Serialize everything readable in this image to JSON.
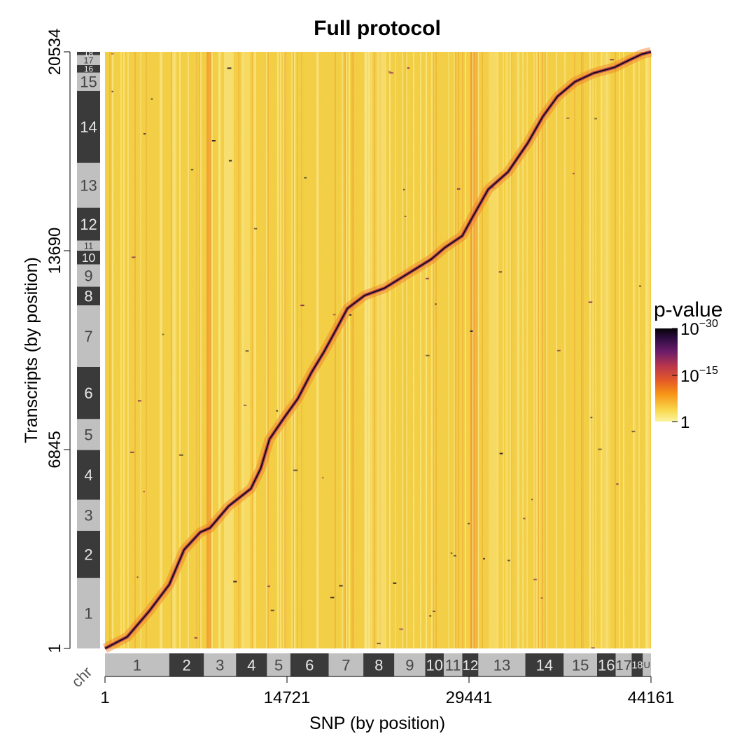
{
  "chart_data": {
    "type": "heatmap",
    "title": "Full protocol",
    "xlabel": "SNP (by position)",
    "ylabel": "Transcripts (by position)",
    "x_ticks": [
      "1",
      "14721",
      "29441",
      "44161"
    ],
    "x_tick_values": [
      1,
      14721,
      29441,
      44161
    ],
    "xlim": [
      1,
      44161
    ],
    "y_ticks": [
      "1",
      "6845",
      "13690",
      "20534"
    ],
    "y_tick_values": [
      1,
      6845,
      13690,
      20534
    ],
    "ylim": [
      1,
      20534
    ],
    "chr_axis_label": "chr",
    "x_chromosomes": [
      {
        "label": "1",
        "start": 1,
        "end": 5200,
        "shade": "light"
      },
      {
        "label": "2",
        "start": 5200,
        "end": 8000,
        "shade": "dark"
      },
      {
        "label": "3",
        "start": 8000,
        "end": 10600,
        "shade": "light"
      },
      {
        "label": "4",
        "start": 10600,
        "end": 13100,
        "shade": "dark"
      },
      {
        "label": "5",
        "start": 13100,
        "end": 15000,
        "shade": "light"
      },
      {
        "label": "6",
        "start": 15000,
        "end": 18100,
        "shade": "dark"
      },
      {
        "label": "7",
        "start": 18100,
        "end": 20900,
        "shade": "light"
      },
      {
        "label": "8",
        "start": 20900,
        "end": 23400,
        "shade": "dark"
      },
      {
        "label": "9",
        "start": 23400,
        "end": 25900,
        "shade": "light"
      },
      {
        "label": "10",
        "start": 25900,
        "end": 27400,
        "shade": "dark"
      },
      {
        "label": "11",
        "start": 27400,
        "end": 28900,
        "shade": "light"
      },
      {
        "label": "12",
        "start": 28900,
        "end": 30200,
        "shade": "dark"
      },
      {
        "label": "13",
        "start": 30200,
        "end": 34000,
        "shade": "light"
      },
      {
        "label": "14",
        "start": 34000,
        "end": 37100,
        "shade": "dark"
      },
      {
        "label": "15",
        "start": 37100,
        "end": 39800,
        "shade": "light"
      },
      {
        "label": "16",
        "start": 39800,
        "end": 41300,
        "shade": "dark"
      },
      {
        "label": "17",
        "start": 41300,
        "end": 42600,
        "shade": "light"
      },
      {
        "label": "18",
        "start": 42600,
        "end": 43500,
        "shade": "dark"
      },
      {
        "label": "U",
        "start": 43500,
        "end": 44161,
        "shade": "light"
      }
    ],
    "y_chromosomes": [
      {
        "label": "1",
        "start": 1,
        "end": 2430,
        "shade": "light"
      },
      {
        "label": "2",
        "start": 2430,
        "end": 4050,
        "shade": "dark"
      },
      {
        "label": "3",
        "start": 4050,
        "end": 5120,
        "shade": "light"
      },
      {
        "label": "4",
        "start": 5120,
        "end": 6830,
        "shade": "dark"
      },
      {
        "label": "5",
        "start": 6830,
        "end": 7900,
        "shade": "light"
      },
      {
        "label": "6",
        "start": 7900,
        "end": 9690,
        "shade": "dark"
      },
      {
        "label": "7",
        "start": 9690,
        "end": 11810,
        "shade": "light"
      },
      {
        "label": "8",
        "start": 11810,
        "end": 12450,
        "shade": "dark"
      },
      {
        "label": "9",
        "start": 12450,
        "end": 13220,
        "shade": "light"
      },
      {
        "label": "10",
        "start": 13220,
        "end": 13690,
        "shade": "dark"
      },
      {
        "label": "11",
        "start": 13690,
        "end": 14040,
        "shade": "light"
      },
      {
        "label": "12",
        "start": 14040,
        "end": 15170,
        "shade": "dark"
      },
      {
        "label": "13",
        "start": 15170,
        "end": 16710,
        "shade": "light"
      },
      {
        "label": "14",
        "start": 16710,
        "end": 19190,
        "shade": "dark"
      },
      {
        "label": "15",
        "start": 19190,
        "end": 19820,
        "shade": "light"
      },
      {
        "label": "16",
        "start": 19820,
        "end": 20080,
        "shade": "dark"
      },
      {
        "label": "17",
        "start": 20080,
        "end": 20420,
        "shade": "light"
      },
      {
        "label": "18",
        "start": 20420,
        "end": 20534,
        "shade": "dark"
      }
    ],
    "legend": {
      "title": "p-value",
      "scale": "log",
      "ticks": [
        {
          "base": "10",
          "exp": "−30",
          "value": 1e-30
        },
        {
          "base": "10",
          "exp": "−15",
          "value": 1e-15
        },
        {
          "base": "1",
          "exp": "",
          "value": 1
        }
      ],
      "placement": "right"
    },
    "colors": {
      "background": "#f2cf45",
      "low": "#fbec93",
      "mid": "#f07d20",
      "high": "#140a22",
      "chr_light": "#c0c0c0",
      "chr_dark": "#3a3a3a",
      "text_light": "#444444",
      "text_dark": "#e8e8e8"
    },
    "diagonal_trace": [
      [
        1,
        1
      ],
      [
        1800,
        400
      ],
      [
        3600,
        1300
      ],
      [
        5200,
        2200
      ],
      [
        6400,
        3400
      ],
      [
        7700,
        4000
      ],
      [
        8500,
        4150
      ],
      [
        10000,
        4900
      ],
      [
        11800,
        5500
      ],
      [
        12600,
        6200
      ],
      [
        13300,
        7200
      ],
      [
        14500,
        7950
      ],
      [
        15600,
        8600
      ],
      [
        16700,
        9500
      ],
      [
        17700,
        10200
      ],
      [
        18600,
        10900
      ],
      [
        19600,
        11700
      ],
      [
        21000,
        12150
      ],
      [
        22600,
        12400
      ],
      [
        24500,
        12900
      ],
      [
        26400,
        13400
      ],
      [
        27500,
        13800
      ],
      [
        28900,
        14200
      ],
      [
        29800,
        14900
      ],
      [
        31000,
        15800
      ],
      [
        32600,
        16400
      ],
      [
        34200,
        17400
      ],
      [
        35400,
        18300
      ],
      [
        36600,
        19000
      ],
      [
        38000,
        19500
      ],
      [
        39500,
        19800
      ],
      [
        41200,
        20000
      ],
      [
        42400,
        20250
      ],
      [
        43400,
        20450
      ],
      [
        44161,
        20534
      ]
    ],
    "grid": false
  }
}
